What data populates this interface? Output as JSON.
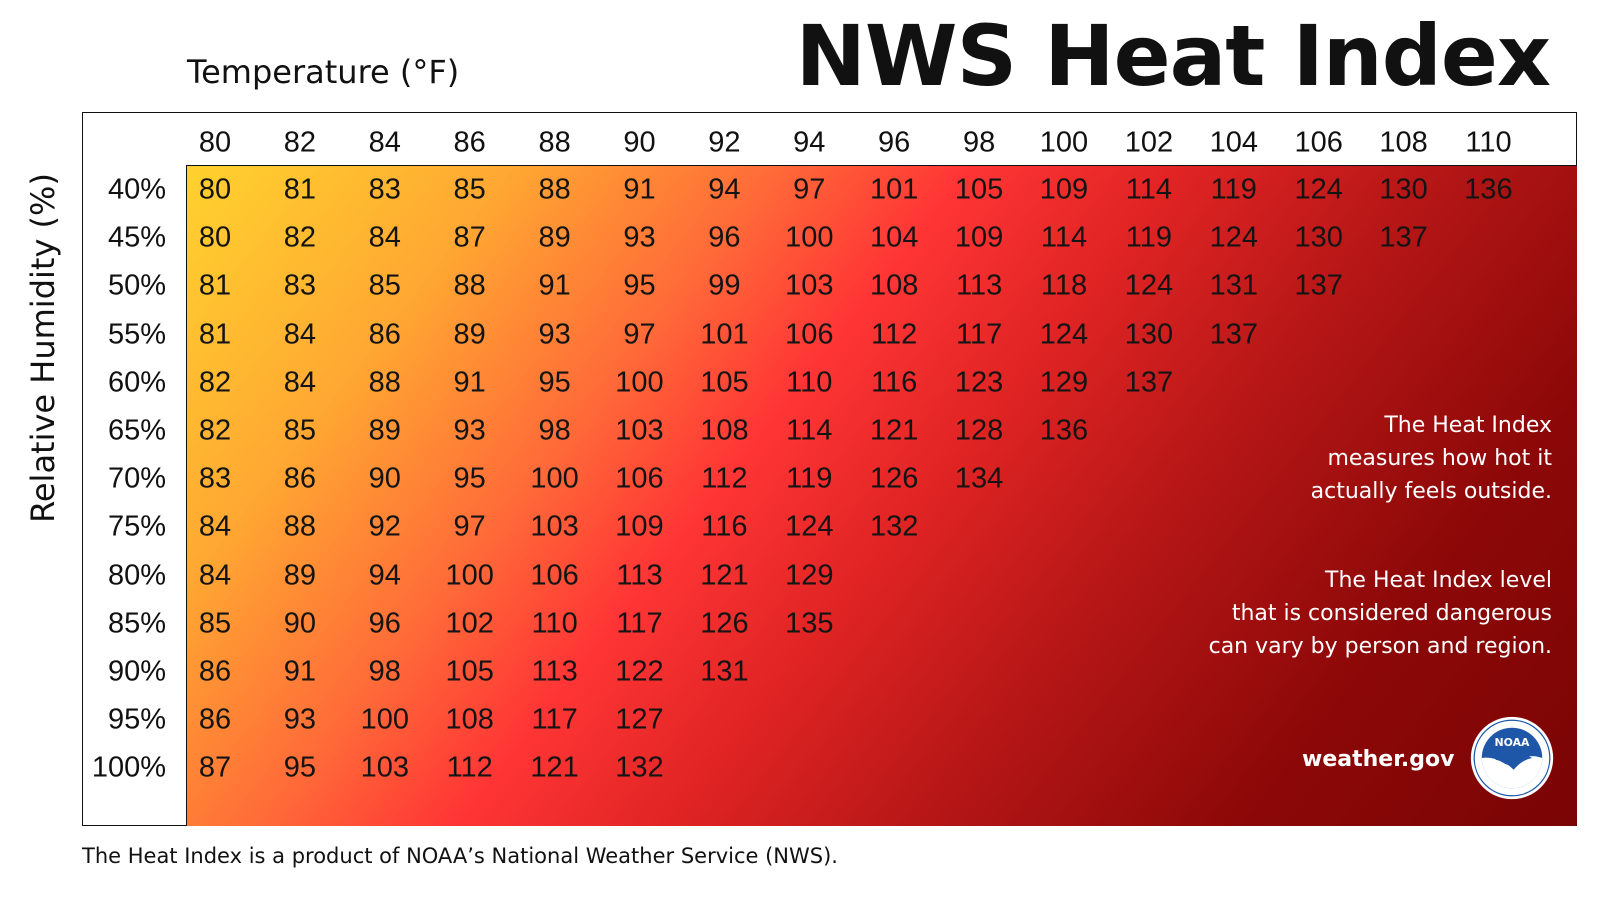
{
  "title": "NWS Heat Index",
  "notes": {
    "line1": "The Heat Index",
    "line2": "measures how hot it",
    "line3": "actually feels outside.",
    "line4": "The Heat Index level",
    "line5": "that is considered dangerous",
    "line6": "can vary by person and region."
  },
  "brand": "weather.gov",
  "seal": {
    "text": "NOAA",
    "colors": {
      "ring": "#ffffff",
      "inner": "#1e57a8",
      "bird": "#ffffff"
    }
  },
  "footnote": "The Heat Index is a product of NOAA’s National Weather Service (NWS).",
  "colors": {
    "gradient_start": "#ffd22e",
    "gradient_mid": "#ff3535",
    "gradient_end": "#7a0404"
  },
  "chart_data": {
    "type": "table",
    "xlabel": "Temperature (°F)",
    "ylabel": "Relative Humidity (%)",
    "columns": [
      80,
      82,
      84,
      86,
      88,
      90,
      92,
      94,
      96,
      98,
      100,
      102,
      104,
      106,
      108,
      110
    ],
    "rows": [
      "40%",
      "45%",
      "50%",
      "55%",
      "60%",
      "65%",
      "70%",
      "75%",
      "80%",
      "85%",
      "90%",
      "95%",
      "100%"
    ],
    "values": [
      [
        80,
        81,
        83,
        85,
        88,
        91,
        94,
        97,
        101,
        105,
        109,
        114,
        119,
        124,
        130,
        136
      ],
      [
        80,
        82,
        84,
        87,
        89,
        93,
        96,
        100,
        104,
        109,
        114,
        119,
        124,
        130,
        137,
        null
      ],
      [
        81,
        83,
        85,
        88,
        91,
        95,
        99,
        103,
        108,
        113,
        118,
        124,
        131,
        137,
        null,
        null
      ],
      [
        81,
        84,
        86,
        89,
        93,
        97,
        101,
        106,
        112,
        117,
        124,
        130,
        137,
        null,
        null,
        null
      ],
      [
        82,
        84,
        88,
        91,
        95,
        100,
        105,
        110,
        116,
        123,
        129,
        137,
        null,
        null,
        null,
        null
      ],
      [
        82,
        85,
        89,
        93,
        98,
        103,
        108,
        114,
        121,
        128,
        136,
        null,
        null,
        null,
        null,
        null
      ],
      [
        83,
        86,
        90,
        95,
        100,
        106,
        112,
        119,
        126,
        134,
        null,
        null,
        null,
        null,
        null,
        null
      ],
      [
        84,
        88,
        92,
        97,
        103,
        109,
        116,
        124,
        132,
        null,
        null,
        null,
        null,
        null,
        null,
        null
      ],
      [
        84,
        89,
        94,
        100,
        106,
        113,
        121,
        129,
        null,
        null,
        null,
        null,
        null,
        null,
        null,
        null
      ],
      [
        85,
        90,
        96,
        102,
        110,
        117,
        126,
        135,
        null,
        null,
        null,
        null,
        null,
        null,
        null,
        null
      ],
      [
        86,
        91,
        98,
        105,
        113,
        122,
        131,
        null,
        null,
        null,
        null,
        null,
        null,
        null,
        null,
        null
      ],
      [
        86,
        93,
        100,
        108,
        117,
        127,
        null,
        null,
        null,
        null,
        null,
        null,
        null,
        null,
        null,
        null
      ],
      [
        87,
        95,
        103,
        112,
        121,
        132,
        null,
        null,
        null,
        null,
        null,
        null,
        null,
        null,
        null,
        null
      ]
    ]
  }
}
